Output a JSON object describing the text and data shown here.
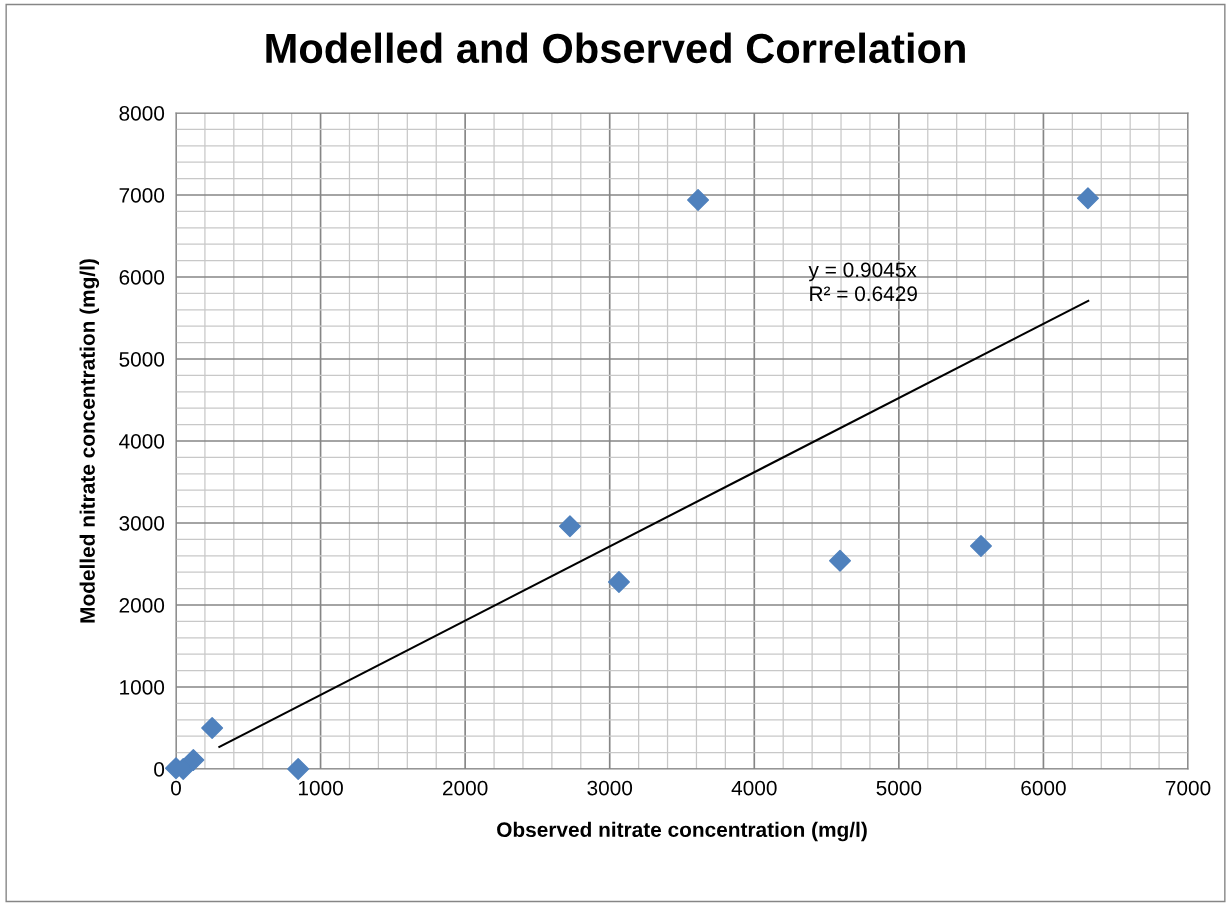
{
  "chart_data": {
    "type": "scatter",
    "title": "Modelled and Observed Correlation",
    "xlabel": "Observed nitrate concentration (mg/l)",
    "ylabel": "Modelled nitrate concentration (mg/l)",
    "xlim": [
      0,
      7000
    ],
    "ylim": [
      0,
      8000
    ],
    "xticks": [
      0,
      1000,
      2000,
      3000,
      4000,
      5000,
      6000,
      7000
    ],
    "yticks": [
      0,
      1000,
      2000,
      3000,
      4000,
      5000,
      6000,
      7000,
      8000
    ],
    "grid": true,
    "series": [
      {
        "marker": "diamond",
        "color": "#4f81bd",
        "x": [
          0,
          50,
          120,
          250,
          845,
          2725,
          3064,
          3611,
          4593,
          5568,
          6308
        ],
        "values": [
          10,
          0,
          110,
          500,
          0,
          2960,
          2280,
          6940,
          2540,
          2720,
          6960
        ]
      },
      {
        "type": "line",
        "marker": "none",
        "color": "#000000",
        "x": [
          300,
          6310
        ],
        "values": [
          270,
          5710
        ]
      }
    ],
    "annotations": [
      "y = 0.9045x\nR² = 0.6429"
    ]
  }
}
